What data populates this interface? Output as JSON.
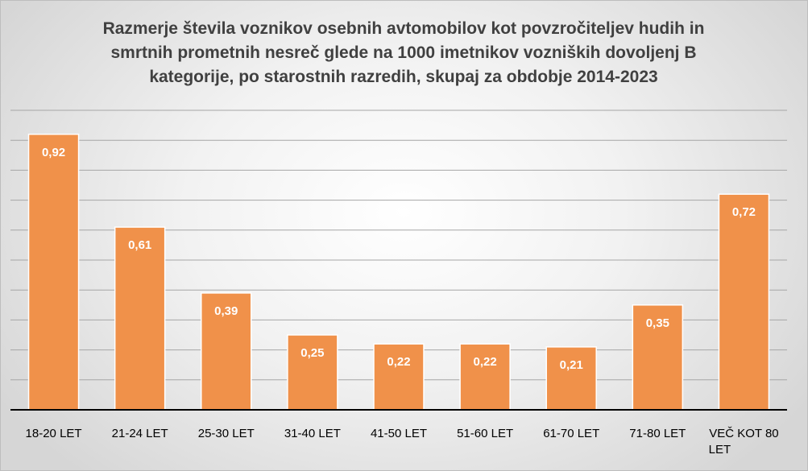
{
  "chart_data": {
    "type": "bar",
    "title": "Razmerje števila voznikov osebnih avtomobilov kot povzročiteljev hudih in smrtnih prometnih nesreč glede na 1000 imetnikov vozniških dovoljenj B kategorije, po starostnih razredih, skupaj za obdobje 2014-2023",
    "categories": [
      "18-20 LET",
      "21-24 LET",
      "25-30 LET",
      "31-40 LET",
      "41-50 LET",
      "51-60 LET",
      "61-70 LET",
      "71-80 LET",
      "VEČ KOT 80 LET"
    ],
    "values": [
      0.92,
      0.61,
      0.39,
      0.25,
      0.22,
      0.22,
      0.21,
      0.35,
      0.72
    ],
    "value_labels": [
      "0,92",
      "0,61",
      "0,39",
      "0,25",
      "0,22",
      "0,22",
      "0,21",
      "0,35",
      "0,72"
    ],
    "ylim": [
      0,
      1.0
    ],
    "y_axis_visible": false,
    "grid": true,
    "bar_color": "#f0914a",
    "legend": "none"
  }
}
